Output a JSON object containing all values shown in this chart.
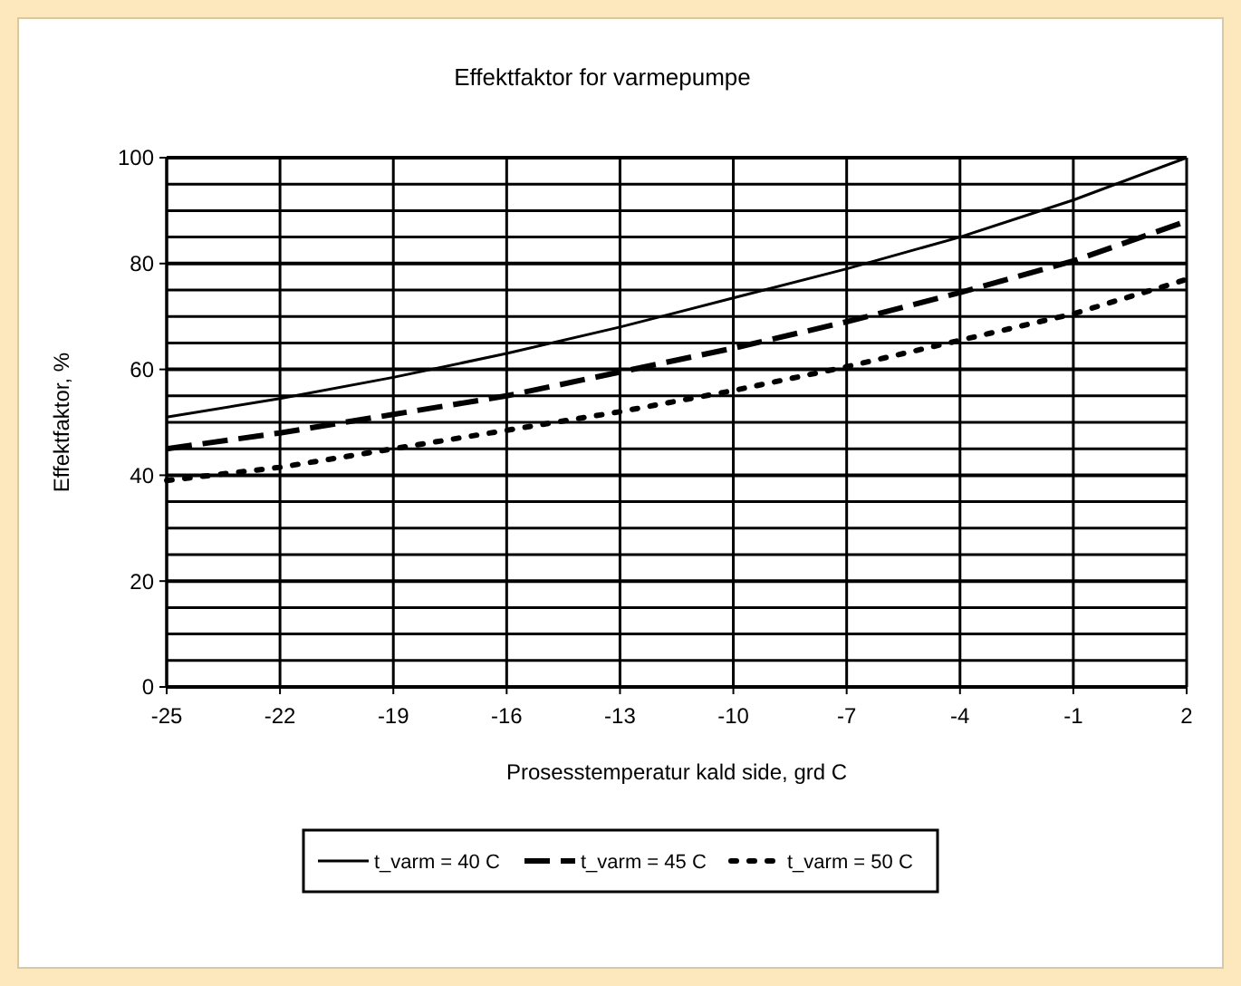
{
  "chart_data": {
    "type": "line",
    "title": "Effektfaktor for varmepumpe",
    "xlabel": "Prosesstemperatur kald side, grd C",
    "ylabel": "Effektfaktor, %",
    "x": [
      -25,
      -22,
      -19,
      -16,
      -13,
      -10,
      -7,
      -4,
      -1,
      2
    ],
    "series": [
      {
        "name": "t_varm = 40 C",
        "color": "#000000",
        "line_style": "solid",
        "values": [
          51,
          54.5,
          58.5,
          63,
          68,
          73.5,
          79,
          85,
          92,
          100
        ]
      },
      {
        "name": "t_varm = 45 C",
        "color": "#000000",
        "line_style": "dashed",
        "values": [
          45,
          48,
          51.5,
          55,
          59.5,
          64,
          69,
          74.5,
          80.5,
          88
        ]
      },
      {
        "name": "t_varm = 50 C",
        "color": "#000000",
        "line_style": "dotted",
        "values": [
          39,
          41.5,
          45,
          48.5,
          52,
          56,
          60.5,
          65.5,
          70.5,
          77
        ]
      }
    ],
    "xlim": [
      -25,
      2
    ],
    "xticks": [
      -25,
      -22,
      -19,
      -16,
      -13,
      -10,
      -7,
      -4,
      -1,
      2
    ],
    "ylim": [
      0,
      100
    ],
    "yticks": [
      0,
      {
        "value": 5,
        "label": null
      },
      {
        "value": 10,
        "label": null
      },
      {
        "value": 15,
        "label": null
      },
      20,
      {
        "value": 25,
        "label": null
      },
      {
        "value": 30,
        "label": null
      },
      {
        "value": 35,
        "label": null
      },
      40,
      {
        "value": 45,
        "label": null
      },
      {
        "value": 50,
        "label": null
      },
      {
        "value": 55,
        "label": null
      },
      60,
      {
        "value": 65,
        "label": null
      },
      {
        "value": 70,
        "label": null
      },
      {
        "value": 75,
        "label": null
      },
      80,
      {
        "value": 85,
        "label": null
      },
      {
        "value": 90,
        "label": null
      },
      {
        "value": 95,
        "label": null
      },
      100
    ],
    "grid": true,
    "legend": "bottom"
  }
}
